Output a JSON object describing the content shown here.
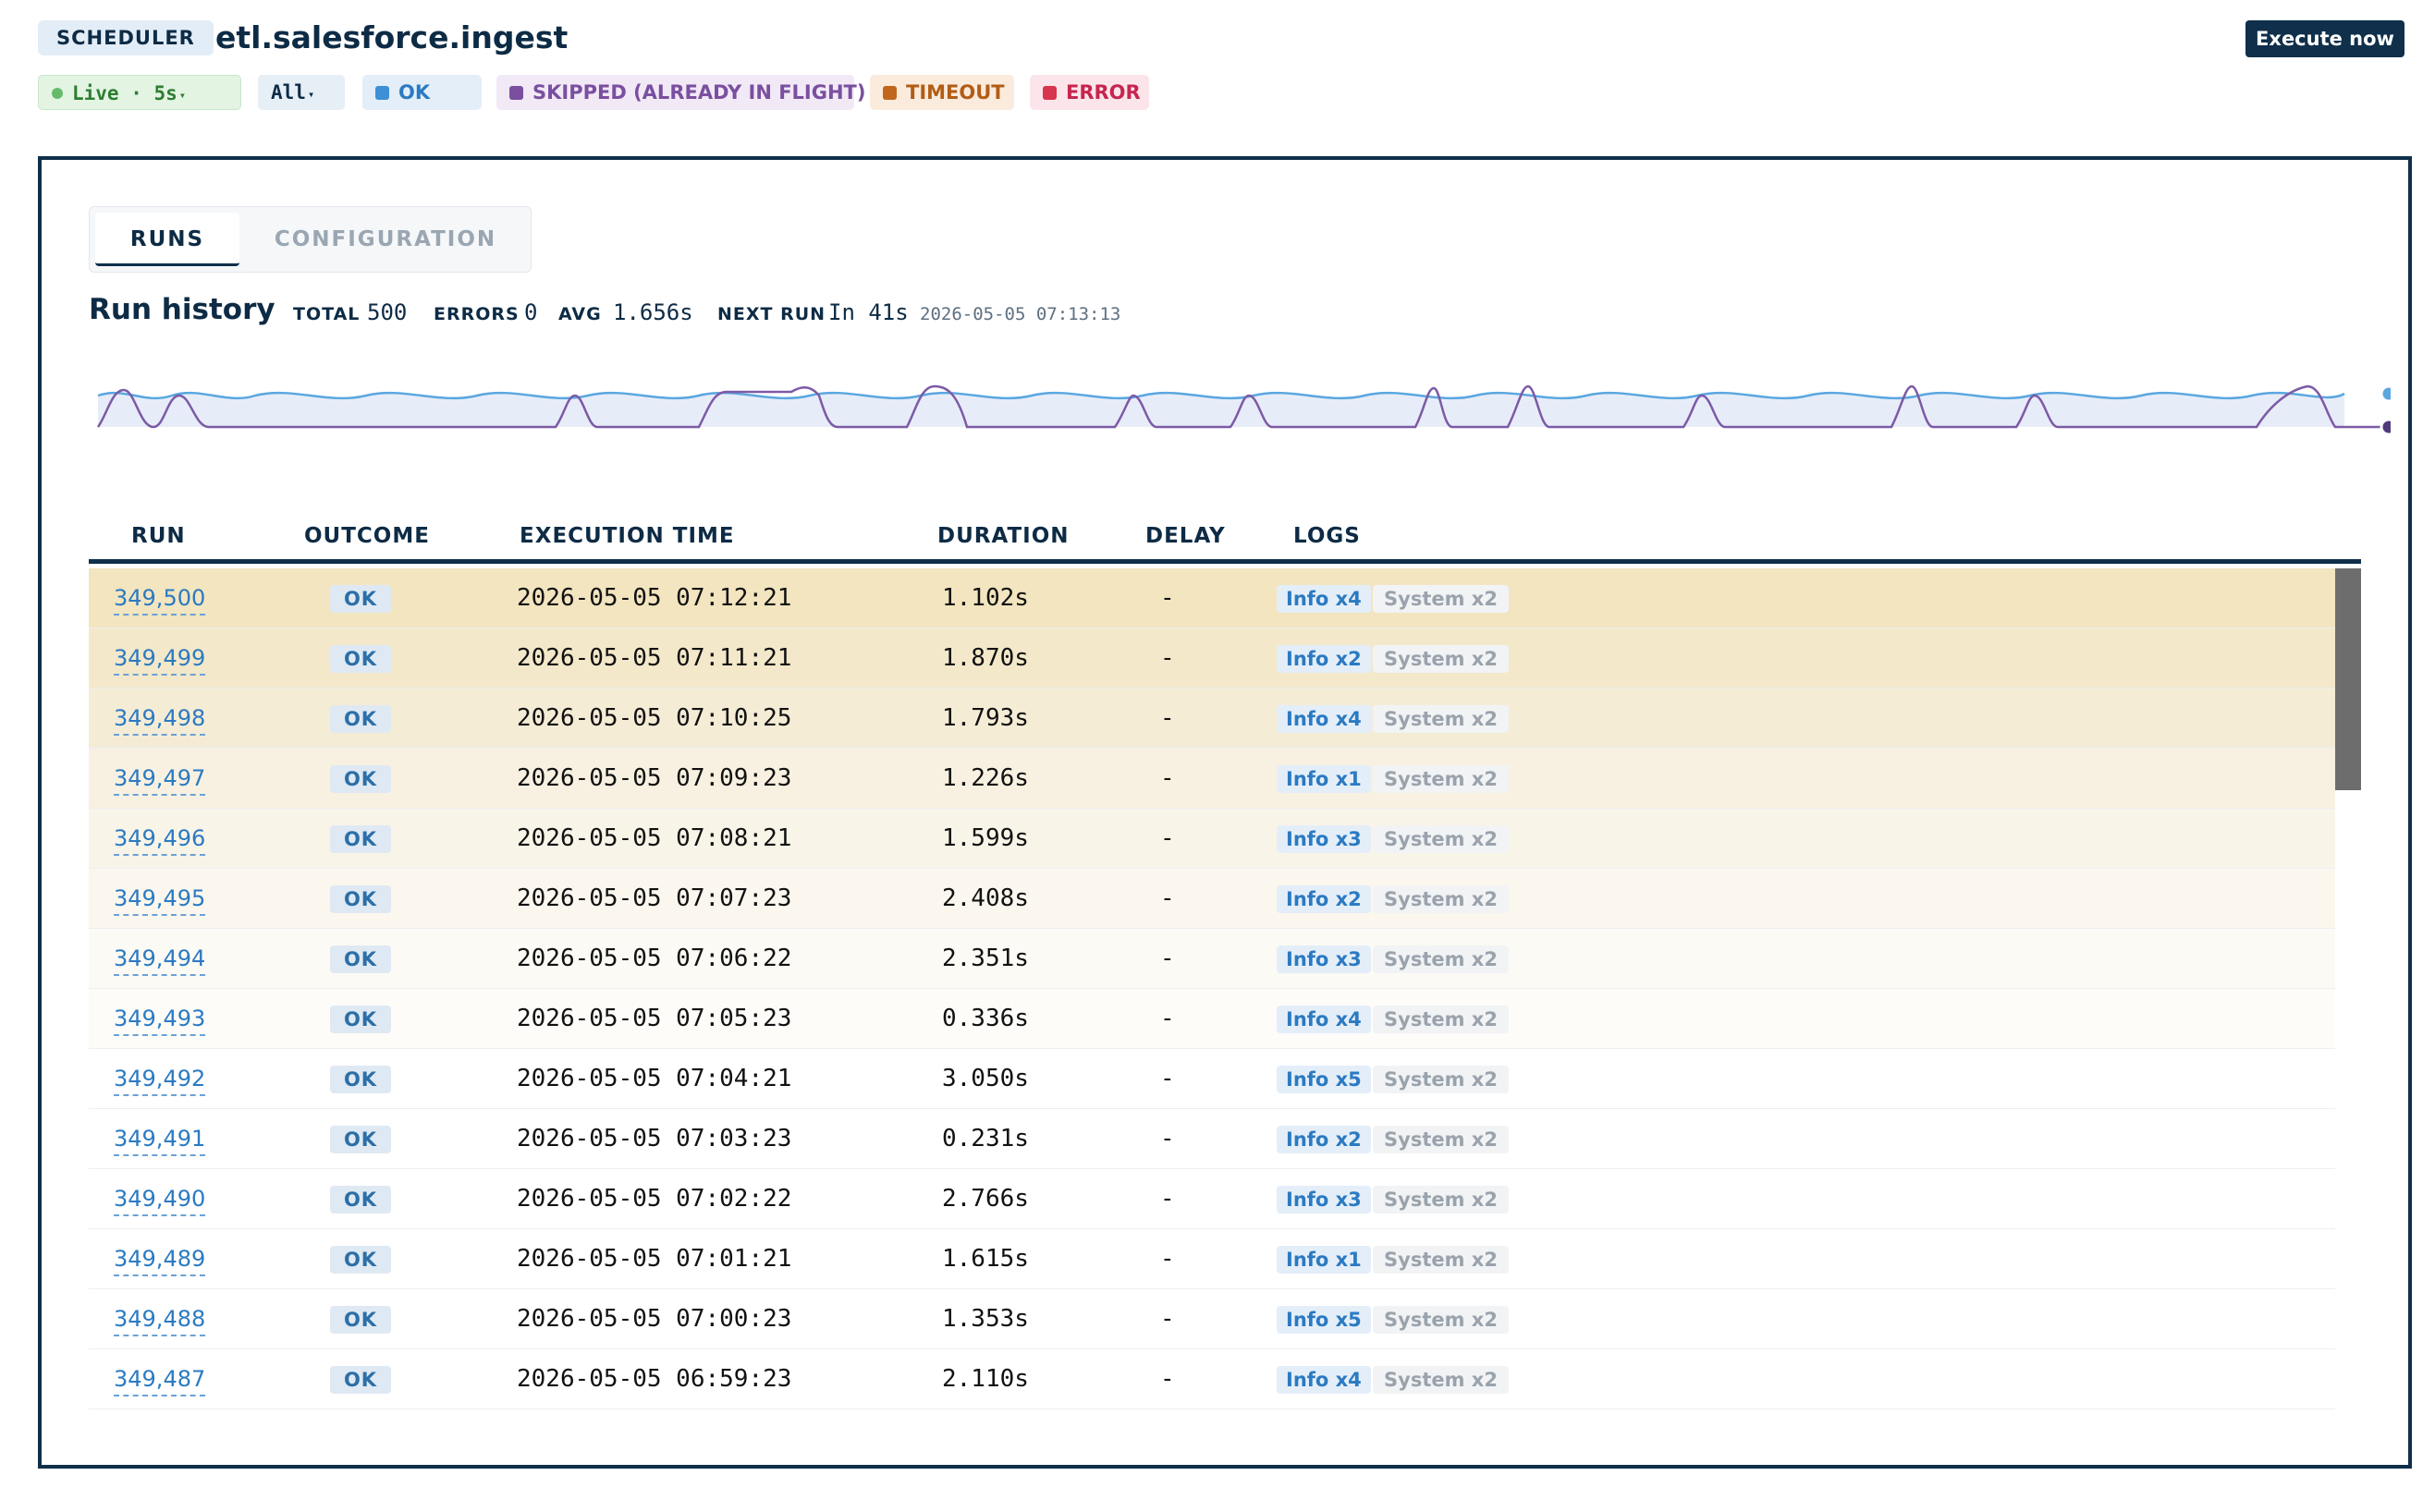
{
  "header": {
    "badge": "SCHEDULER",
    "title": "etl.salesforce.ingest",
    "execute_label": "Execute now"
  },
  "filters": {
    "live": "Live · 5s",
    "all": "All",
    "ok": "OK",
    "skipped": "SKIPPED (ALREADY IN FLIGHT)",
    "timeout": "TIMEOUT",
    "error": "ERROR"
  },
  "tabs": {
    "runs": "RUNS",
    "configuration": "CONFIGURATION"
  },
  "history": {
    "title": "Run history",
    "total_label": "TOTAL",
    "total": "500",
    "errors_label": "ERRORS",
    "errors": "0",
    "avg_label": "AVG",
    "avg": "1.656s",
    "next_label": "NEXT RUN",
    "next": "In 41s",
    "next_ts": "2026-05-05 07:13:13"
  },
  "columns": {
    "run": "RUN",
    "outcome": "OUTCOME",
    "execution_time": "EXECUTION TIME",
    "duration": "DURATION",
    "delay": "DELAY",
    "logs": "LOGS"
  },
  "rows": [
    {
      "run": "349,500",
      "outcome": "OK",
      "time": "2026-05-05 07:12:21",
      "duration": "1.102s",
      "delay": "-",
      "info": "Info x4",
      "system": "System x2"
    },
    {
      "run": "349,499",
      "outcome": "OK",
      "time": "2026-05-05 07:11:21",
      "duration": "1.870s",
      "delay": "-",
      "info": "Info x2",
      "system": "System x2"
    },
    {
      "run": "349,498",
      "outcome": "OK",
      "time": "2026-05-05 07:10:25",
      "duration": "1.793s",
      "delay": "-",
      "info": "Info x4",
      "system": "System x2"
    },
    {
      "run": "349,497",
      "outcome": "OK",
      "time": "2026-05-05 07:09:23",
      "duration": "1.226s",
      "delay": "-",
      "info": "Info x1",
      "system": "System x2"
    },
    {
      "run": "349,496",
      "outcome": "OK",
      "time": "2026-05-05 07:08:21",
      "duration": "1.599s",
      "delay": "-",
      "info": "Info x3",
      "system": "System x2"
    },
    {
      "run": "349,495",
      "outcome": "OK",
      "time": "2026-05-05 07:07:23",
      "duration": "2.408s",
      "delay": "-",
      "info": "Info x2",
      "system": "System x2"
    },
    {
      "run": "349,494",
      "outcome": "OK",
      "time": "2026-05-05 07:06:22",
      "duration": "2.351s",
      "delay": "-",
      "info": "Info x3",
      "system": "System x2"
    },
    {
      "run": "349,493",
      "outcome": "OK",
      "time": "2026-05-05 07:05:23",
      "duration": "0.336s",
      "delay": "-",
      "info": "Info x4",
      "system": "System x2"
    },
    {
      "run": "349,492",
      "outcome": "OK",
      "time": "2026-05-05 07:04:21",
      "duration": "3.050s",
      "delay": "-",
      "info": "Info x5",
      "system": "System x2"
    },
    {
      "run": "349,491",
      "outcome": "OK",
      "time": "2026-05-05 07:03:23",
      "duration": "0.231s",
      "delay": "-",
      "info": "Info x2",
      "system": "System x2"
    },
    {
      "run": "349,490",
      "outcome": "OK",
      "time": "2026-05-05 07:02:22",
      "duration": "2.766s",
      "delay": "-",
      "info": "Info x3",
      "system": "System x2"
    },
    {
      "run": "349,489",
      "outcome": "OK",
      "time": "2026-05-05 07:01:21",
      "duration": "1.615s",
      "delay": "-",
      "info": "Info x1",
      "system": "System x2"
    },
    {
      "run": "349,488",
      "outcome": "OK",
      "time": "2026-05-05 07:00:23",
      "duration": "1.353s",
      "delay": "-",
      "info": "Info x5",
      "system": "System x2"
    },
    {
      "run": "349,487",
      "outcome": "OK",
      "time": "2026-05-05 06:59:23",
      "duration": "2.110s",
      "delay": "-",
      "info": "Info x4",
      "system": "System x2"
    }
  ],
  "colors": {
    "accent": "#0f2f4a",
    "ok": "#2b7ac2",
    "skipped": "#7a4f9f",
    "timeout": "#b25d16",
    "error": "#c7254e",
    "live": "#2e7d32",
    "row_highlight": "#f2e5bf"
  }
}
